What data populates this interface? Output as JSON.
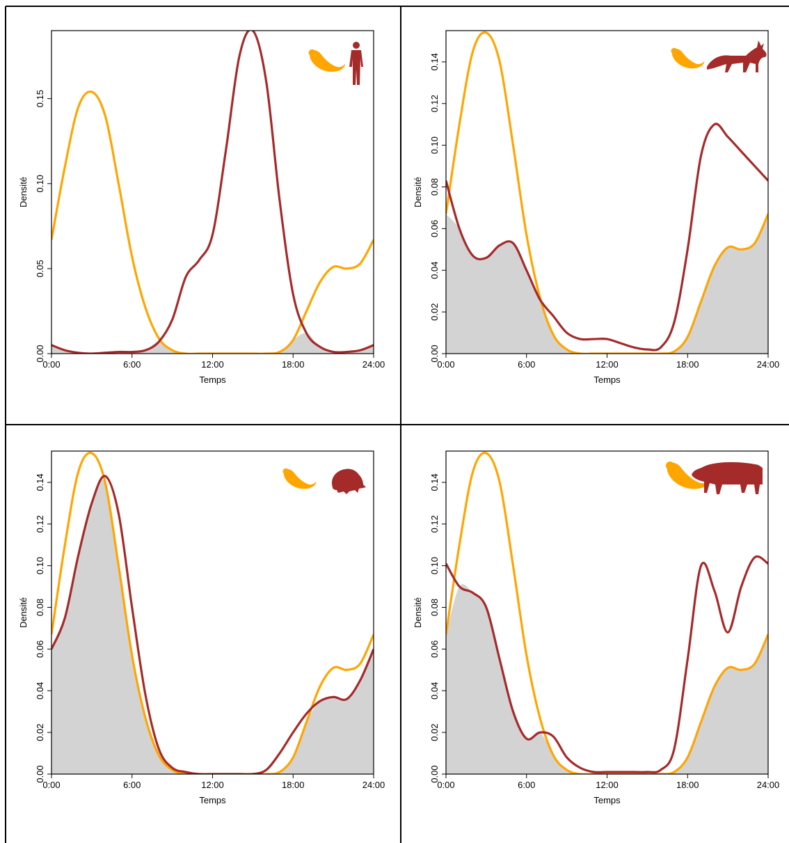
{
  "colors": {
    "series_a": "#FFA500",
    "series_b": "#A52A2A",
    "overlap_fill": "#D3D3D3"
  },
  "chart_data": [
    {
      "type": "line",
      "xlabel": "Temps",
      "ylabel": "Densité",
      "x_ticks": [
        "0:00",
        "6:00",
        "12:00",
        "18:00",
        "24:00"
      ],
      "xlim": [
        0,
        24
      ],
      "ylim": [
        0,
        0.19
      ],
      "y_ticks": [
        0.0,
        0.05,
        0.1,
        0.15
      ],
      "y_tick_labels": [
        "0.00",
        "0.05",
        "0.10",
        "0.15"
      ],
      "overlap_shaded": true,
      "icons": [
        "mongoose-icon",
        "human-icon"
      ],
      "series": [
        {
          "color": "#FFA500",
          "x": [
            0,
            1,
            2,
            3,
            4,
            5,
            6,
            7,
            8,
            9,
            10,
            11,
            12,
            13,
            14,
            15,
            16,
            17,
            18,
            19,
            20,
            21,
            22,
            23,
            24
          ],
          "values": [
            0.067,
            0.11,
            0.145,
            0.154,
            0.14,
            0.1,
            0.057,
            0.027,
            0.009,
            0.002,
            0,
            0,
            0,
            0,
            0,
            0,
            0,
            0.001,
            0.008,
            0.025,
            0.042,
            0.051,
            0.05,
            0.053,
            0.067
          ]
        },
        {
          "color": "#A52A2A",
          "x": [
            0,
            1,
            2,
            3,
            4,
            5,
            6,
            7,
            8,
            9,
            10,
            11,
            12,
            13,
            14,
            15,
            16,
            17,
            18,
            19,
            20,
            21,
            22,
            23,
            24
          ],
          "values": [
            0.005,
            0.002,
            0.0005,
            0,
            0.0005,
            0.001,
            0.001,
            0.002,
            0.007,
            0.02,
            0.045,
            0.055,
            0.07,
            0.12,
            0.175,
            0.19,
            0.16,
            0.09,
            0.035,
            0.012,
            0.004,
            0.001,
            0.001,
            0.002,
            0.005
          ]
        }
      ]
    },
    {
      "type": "line",
      "xlabel": "Temps",
      "ylabel": "Densité",
      "x_ticks": [
        "0:00",
        "6:00",
        "12:00",
        "18:00",
        "24:00"
      ],
      "xlim": [
        0,
        24
      ],
      "ylim": [
        0,
        0.155
      ],
      "y_ticks": [
        0,
        0.02,
        0.04,
        0.06,
        0.08,
        0.1,
        0.12,
        0.14
      ],
      "y_tick_labels": [
        "0.00",
        "0.02",
        "0.04",
        "0.06",
        "0.08",
        "0.10",
        "0.12",
        "0.14"
      ],
      "overlap_shaded": true,
      "icons": [
        "mongoose-icon",
        "fox-icon"
      ],
      "series": [
        {
          "color": "#FFA500",
          "x": [
            0,
            1,
            2,
            3,
            4,
            5,
            6,
            7,
            8,
            9,
            10,
            11,
            12,
            13,
            14,
            15,
            16,
            17,
            18,
            19,
            20,
            21,
            22,
            23,
            24
          ],
          "values": [
            0.067,
            0.11,
            0.145,
            0.154,
            0.14,
            0.1,
            0.057,
            0.027,
            0.009,
            0.002,
            0,
            0,
            0,
            0,
            0,
            0,
            0,
            0.001,
            0.008,
            0.025,
            0.042,
            0.051,
            0.05,
            0.053,
            0.067
          ]
        },
        {
          "color": "#A52A2A",
          "x": [
            0,
            1,
            2,
            3,
            4,
            5,
            6,
            7,
            8,
            9,
            10,
            11,
            12,
            13,
            14,
            15,
            16,
            17,
            18,
            19,
            20,
            21,
            22,
            23,
            24
          ],
          "values": [
            0.083,
            0.06,
            0.047,
            0.046,
            0.052,
            0.053,
            0.04,
            0.026,
            0.018,
            0.01,
            0.007,
            0.007,
            0.007,
            0.005,
            0.003,
            0.002,
            0.003,
            0.015,
            0.05,
            0.095,
            0.11,
            0.104,
            0.097,
            0.09,
            0.083
          ]
        }
      ]
    },
    {
      "type": "line",
      "xlabel": "Temps",
      "ylabel": "Densité",
      "x_ticks": [
        "0:00",
        "6:00",
        "12:00",
        "18:00",
        "24:00"
      ],
      "xlim": [
        0,
        24
      ],
      "ylim": [
        0,
        0.155
      ],
      "y_ticks": [
        0,
        0.02,
        0.04,
        0.06,
        0.08,
        0.1,
        0.12,
        0.14
      ],
      "y_tick_labels": [
        "0.00",
        "0.02",
        "0.04",
        "0.06",
        "0.08",
        "0.10",
        "0.12",
        "0.14"
      ],
      "overlap_shaded": true,
      "icons": [
        "mongoose-icon",
        "rodent-icon"
      ],
      "series": [
        {
          "color": "#FFA500",
          "x": [
            0,
            1,
            2,
            3,
            4,
            5,
            6,
            7,
            8,
            9,
            10,
            11,
            12,
            13,
            14,
            15,
            16,
            17,
            18,
            19,
            20,
            21,
            22,
            23,
            24
          ],
          "values": [
            0.067,
            0.11,
            0.145,
            0.154,
            0.14,
            0.1,
            0.057,
            0.027,
            0.009,
            0.002,
            0,
            0,
            0,
            0,
            0,
            0,
            0,
            0.001,
            0.008,
            0.025,
            0.042,
            0.051,
            0.05,
            0.053,
            0.067
          ]
        },
        {
          "color": "#A52A2A",
          "x": [
            0,
            1,
            2,
            3,
            4,
            5,
            6,
            7,
            8,
            9,
            10,
            11,
            12,
            13,
            14,
            15,
            16,
            17,
            18,
            19,
            20,
            21,
            22,
            23,
            24
          ],
          "values": [
            0.06,
            0.075,
            0.105,
            0.13,
            0.143,
            0.125,
            0.08,
            0.038,
            0.012,
            0.003,
            0.001,
            0,
            0,
            0,
            0,
            0,
            0.002,
            0.01,
            0.02,
            0.029,
            0.035,
            0.037,
            0.036,
            0.045,
            0.06
          ]
        }
      ]
    },
    {
      "type": "line",
      "xlabel": "Temps",
      "ylabel": "Densité",
      "x_ticks": [
        "0:00",
        "6:00",
        "12:00",
        "18:00",
        "24:00"
      ],
      "xlim": [
        0,
        24
      ],
      "ylim": [
        0,
        0.155
      ],
      "y_ticks": [
        0,
        0.02,
        0.04,
        0.06,
        0.08,
        0.1,
        0.12,
        0.14
      ],
      "y_tick_labels": [
        "0.00",
        "0.02",
        "0.04",
        "0.06",
        "0.08",
        "0.10",
        "0.12",
        "0.14"
      ],
      "overlap_shaded": true,
      "icons": [
        "mongoose-icon",
        "boar-icon"
      ],
      "series": [
        {
          "color": "#FFA500",
          "x": [
            0,
            1,
            2,
            3,
            4,
            5,
            6,
            7,
            8,
            9,
            10,
            11,
            12,
            13,
            14,
            15,
            16,
            17,
            18,
            19,
            20,
            21,
            22,
            23,
            24
          ],
          "values": [
            0.067,
            0.11,
            0.145,
            0.154,
            0.14,
            0.1,
            0.057,
            0.027,
            0.009,
            0.002,
            0,
            0,
            0,
            0,
            0,
            0,
            0,
            0.001,
            0.008,
            0.025,
            0.042,
            0.051,
            0.05,
            0.053,
            0.067
          ]
        },
        {
          "color": "#A52A2A",
          "x": [
            0,
            1,
            2,
            3,
            4,
            5,
            6,
            7,
            8,
            9,
            10,
            11,
            12,
            13,
            14,
            15,
            16,
            17,
            18,
            19,
            20,
            21,
            22,
            23,
            24
          ],
          "values": [
            0.101,
            0.09,
            0.087,
            0.08,
            0.055,
            0.03,
            0.017,
            0.02,
            0.018,
            0.008,
            0.003,
            0.001,
            0.001,
            0.001,
            0.001,
            0.001,
            0.002,
            0.012,
            0.055,
            0.1,
            0.088,
            0.068,
            0.09,
            0.104,
            0.101
          ]
        }
      ]
    }
  ]
}
